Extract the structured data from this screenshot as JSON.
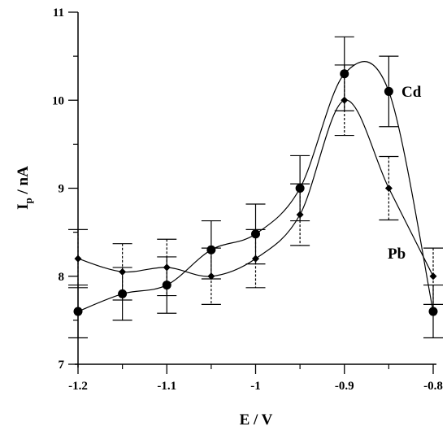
{
  "chart_data": {
    "type": "line",
    "title": "",
    "xlabel": "E / V",
    "ylabel_main": "I",
    "ylabel_sub": "p",
    "ylabel_rest": " / nA",
    "xlim": [
      -1.2,
      -0.8
    ],
    "ylim": [
      7,
      11
    ],
    "xticks": [
      -1.2,
      -1.1,
      -1.0,
      -0.9,
      -0.8
    ],
    "xtick_labels": [
      "-1.2",
      "-1.1",
      "-1",
      "-0.9",
      "-0.8"
    ],
    "yticks": [
      7,
      8,
      9,
      10,
      11
    ],
    "ytick_labels": [
      "7",
      "8",
      "9",
      "10",
      "11"
    ],
    "grid": false,
    "series": [
      {
        "name": "Cd",
        "marker": "circle",
        "errorbar_style": "solid",
        "x": [
          -1.2,
          -1.15,
          -1.1,
          -1.05,
          -1.0,
          -0.95,
          -0.9,
          -0.85,
          -0.8
        ],
        "y": [
          7.6,
          7.8,
          7.9,
          8.3,
          8.48,
          9.0,
          10.3,
          10.1,
          7.6
        ],
        "err": [
          0.3,
          0.3,
          0.32,
          0.33,
          0.34,
          0.37,
          0.42,
          0.4,
          0.3
        ]
      },
      {
        "name": "Pb",
        "marker": "diamond",
        "errorbar_style": "dashed",
        "x": [
          -1.2,
          -1.15,
          -1.1,
          -1.05,
          -1.0,
          -0.95,
          -0.9,
          -0.85,
          -0.8
        ],
        "y": [
          8.2,
          8.05,
          8.1,
          8.0,
          8.2,
          8.7,
          10.0,
          9.0,
          8.0
        ],
        "err": [
          0.33,
          0.32,
          0.32,
          0.32,
          0.33,
          0.35,
          0.4,
          0.36,
          0.32
        ]
      }
    ]
  }
}
